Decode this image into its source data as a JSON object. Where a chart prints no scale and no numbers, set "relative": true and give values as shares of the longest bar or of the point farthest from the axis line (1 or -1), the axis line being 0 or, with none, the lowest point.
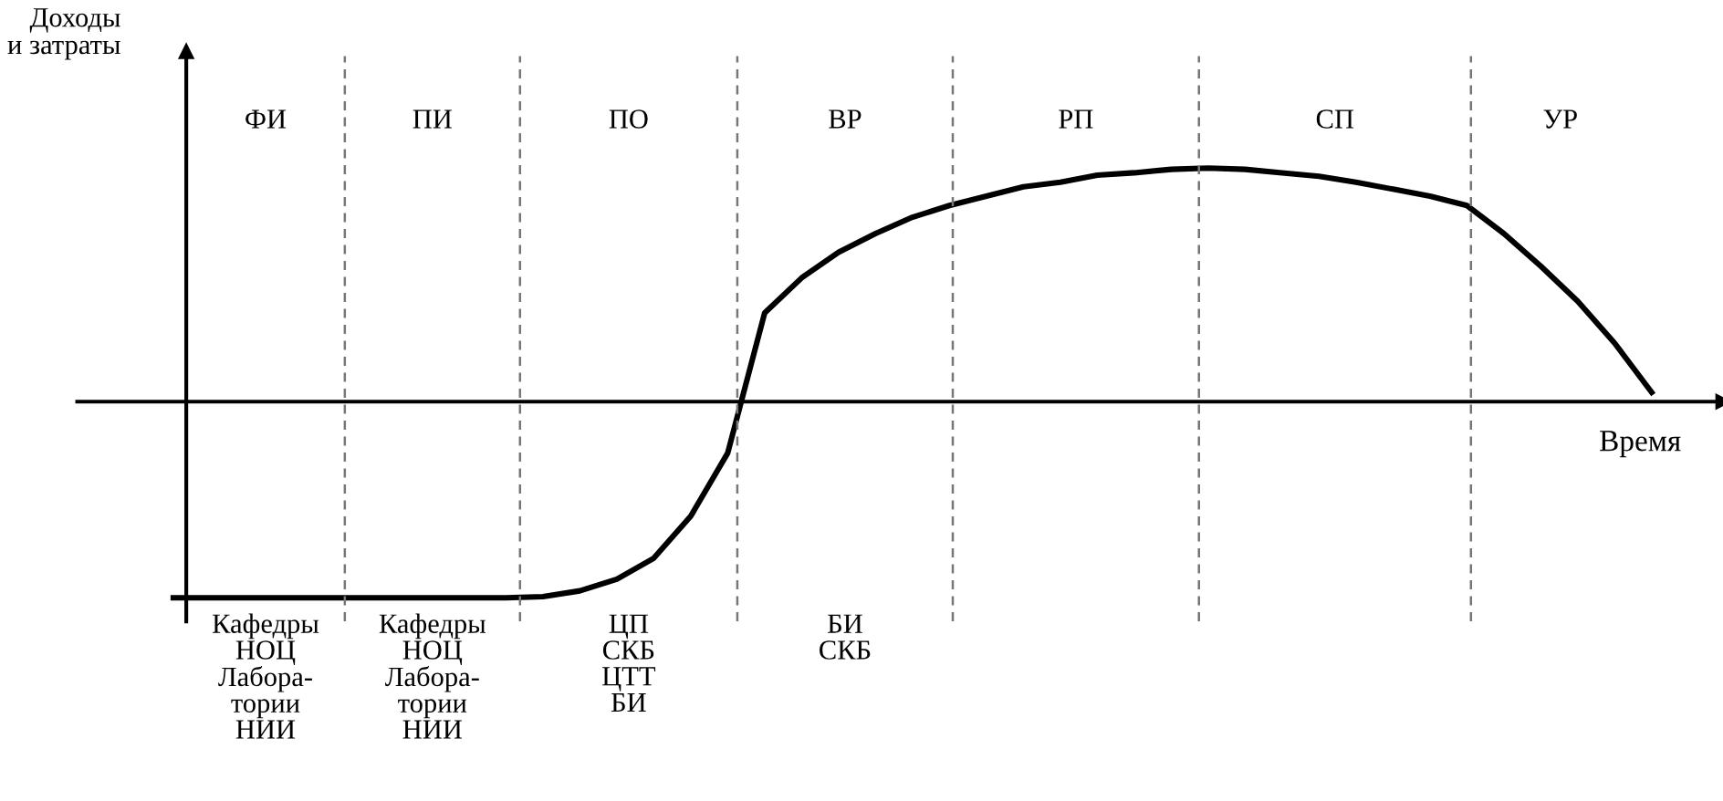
{
  "chart_data": {
    "type": "line",
    "relative": true,
    "xlabel": "Время",
    "ylabel": "Доходы\nи затраты",
    "categories": [
      null,
      null,
      null,
      null,
      null,
      null,
      null,
      null,
      null,
      null,
      null,
      null,
      null,
      null,
      null,
      null,
      null,
      null,
      null,
      null,
      null,
      null,
      null,
      null,
      null,
      null,
      null,
      null,
      null,
      null,
      null,
      null,
      null,
      null,
      null,
      null,
      null,
      null,
      null,
      null,
      null
    ],
    "values": [
      -0.84,
      -0.84,
      -0.84,
      -0.84,
      -0.84,
      -0.84,
      -0.84,
      -0.84,
      -0.84,
      -0.84,
      -0.835,
      -0.81,
      -0.76,
      -0.67,
      -0.49,
      -0.22,
      0.38,
      0.53,
      0.64,
      0.72,
      0.79,
      0.84,
      0.88,
      0.92,
      0.94,
      0.97,
      0.98,
      0.995,
      1,
      0.995,
      0.98,
      0.965,
      0.94,
      0.91,
      0.88,
      0.84,
      0.72,
      0.58,
      0.43,
      0.25,
      0.04
    ],
    "color": "#000000",
    "marker": "none",
    "line_style": "solid",
    "annotations": [
      "ФИ",
      "ПИ",
      "ПО",
      "ВР",
      "РП",
      "СП",
      "УР",
      "Кафедры\nНОЦ\nЛабора-\nтории\nНИИ",
      "Кафедры\nНОЦ\nЛабора-\nтории\nНИИ",
      "ЦП\nСКБ\nЦТТ\nБИ",
      "БИ\nСКБ"
    ]
  }
}
